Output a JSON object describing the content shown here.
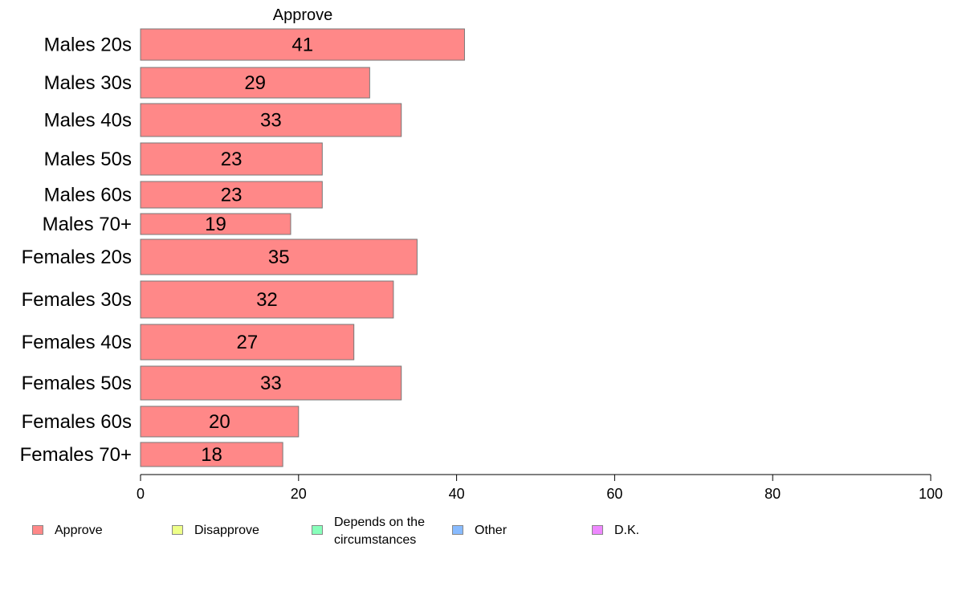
{
  "chart_data": {
    "type": "bar",
    "orientation": "horizontal",
    "title": "Approve",
    "categories": [
      "Males 20s",
      "Males 30s",
      "Males 40s",
      "Males 50s",
      "Males 60s",
      "Males 70+",
      "Females 20s",
      "Females 30s",
      "Females 40s",
      "Females 50s",
      "Females 60s",
      "Females 70+"
    ],
    "series": [
      {
        "name": "Approve",
        "values": [
          41,
          29,
          33,
          23,
          23,
          19,
          35,
          32,
          27,
          33,
          20,
          18
        ],
        "color": "#ff8888"
      }
    ],
    "xlim": [
      0,
      100
    ],
    "xticks": [
      0,
      20,
      40,
      60,
      80,
      100
    ],
    "grid": false,
    "legend_position": "bottom"
  },
  "legend": [
    {
      "label": "Approve",
      "color": "#ff8888"
    },
    {
      "label": "Disapprove",
      "color": "#eeff88"
    },
    {
      "label": "Depends on the\ncircumstances",
      "color": "#88ffbb"
    },
    {
      "label": "Other",
      "color": "#88bbff"
    },
    {
      "label": "D.K.",
      "color": "#ee88ff"
    }
  ]
}
